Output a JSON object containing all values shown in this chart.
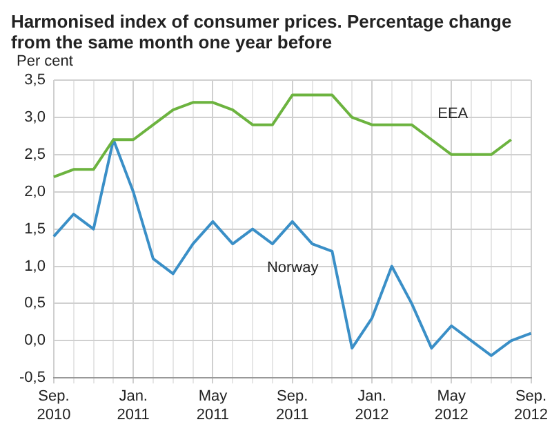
{
  "chart_data": {
    "type": "line",
    "title": "Harmonised index of consumer prices. Percentage change from the same month one year before",
    "ylabel": "Per cent",
    "categories": [
      "Sep.\n2010",
      null,
      null,
      null,
      "Jan.\n2011",
      null,
      null,
      null,
      "May\n2011",
      null,
      null,
      null,
      "Sep.\n2011",
      null,
      null,
      null,
      "Jan.\n2012",
      null,
      null,
      null,
      "May\n2012",
      null,
      null,
      null,
      "Sep.\n2012"
    ],
    "series": [
      {
        "name": "EEA",
        "color": "#6cb33f",
        "values": [
          2.2,
          2.3,
          2.3,
          2.7,
          2.7,
          2.9,
          3.1,
          3.2,
          3.2,
          3.1,
          2.9,
          2.9,
          3.3,
          3.3,
          3.3,
          3.0,
          2.9,
          2.9,
          2.9,
          2.7,
          2.5,
          2.5,
          2.5,
          2.7,
          null
        ]
      },
      {
        "name": "Norway",
        "color": "#3a8fc7",
        "values": [
          1.4,
          1.7,
          1.5,
          2.7,
          2.0,
          1.1,
          0.9,
          1.3,
          1.6,
          1.3,
          1.5,
          1.3,
          1.6,
          1.3,
          1.2,
          -0.1,
          0.3,
          1.0,
          0.5,
          -0.1,
          0.2,
          0.0,
          -0.2,
          0.0,
          0.1
        ]
      }
    ],
    "ylim": [
      -0.5,
      3.5
    ],
    "yticks": [
      {
        "value": -0.5,
        "label": "-0,5"
      },
      {
        "value": 0,
        "label": "0,0"
      },
      {
        "value": 0.5,
        "label": "0,5"
      },
      {
        "value": 1,
        "label": "1,0"
      },
      {
        "value": 1.5,
        "label": "1,5"
      },
      {
        "value": 2,
        "label": "2,0"
      },
      {
        "value": 2.5,
        "label": "2,5"
      },
      {
        "value": 3,
        "label": "3,0"
      },
      {
        "value": 3.5,
        "label": "3,5"
      }
    ],
    "grid": true,
    "legend": false,
    "marker": "none",
    "line_style": "solid"
  }
}
